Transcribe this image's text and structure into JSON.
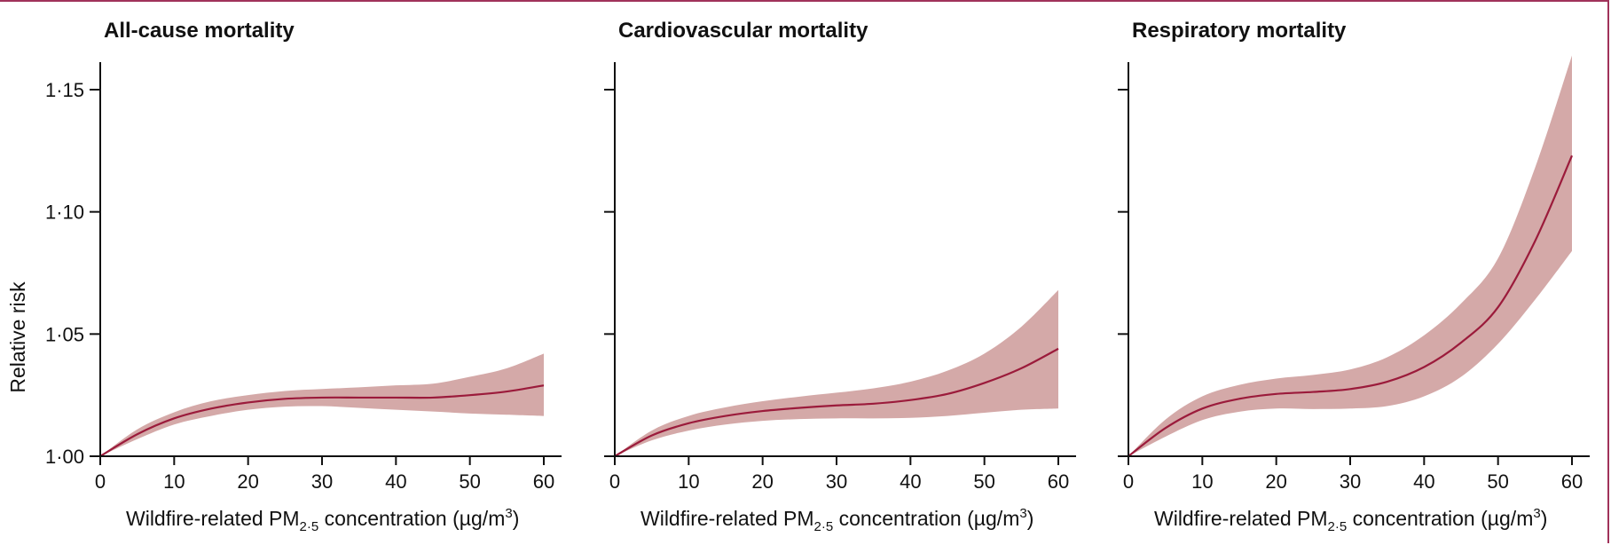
{
  "chart_data": [
    {
      "type": "line",
      "title": "All-cause mortality",
      "xlabel": "Wildfire-related PM",
      "xlabel_sub": "2·5",
      "xlabel_suffix": "concentration (µg/m",
      "xlabel_sup": "3",
      "xlabel_end": ")",
      "ylabel": "Relative risk",
      "xlim": [
        0,
        60
      ],
      "ylim": [
        1.0,
        1.16
      ],
      "x_ticks": [
        0,
        10,
        20,
        30,
        40,
        50,
        60
      ],
      "x_tick_labels": [
        "0",
        "10",
        "20",
        "30",
        "40",
        "50",
        "60"
      ],
      "y_ticks": [
        1.0,
        1.05,
        1.1,
        1.15
      ],
      "y_tick_labels": [
        "1·00",
        "1·05",
        "1·10",
        "1·15"
      ],
      "x": [
        0,
        5,
        10,
        15,
        20,
        25,
        30,
        35,
        40,
        45,
        50,
        55,
        60
      ],
      "series": [
        {
          "values": [
            1.0,
            1.009,
            1.0155,
            1.0195,
            1.022,
            1.0235,
            1.024,
            1.024,
            1.024,
            1.024,
            1.025,
            1.0265,
            1.029
          ]
        }
      ],
      "ci_lower": [
        1.0,
        1.007,
        1.013,
        1.0165,
        1.019,
        1.0203,
        1.0205,
        1.0198,
        1.019,
        1.0183,
        1.0175,
        1.017,
        1.0165
      ],
      "ci_upper": [
        1.0,
        1.011,
        1.018,
        1.0225,
        1.025,
        1.0267,
        1.0275,
        1.0282,
        1.029,
        1.0297,
        1.0325,
        1.036,
        1.042
      ]
    },
    {
      "type": "line",
      "title": "Cardiovascular mortality",
      "xlabel": "Wildfire-related PM",
      "xlabel_sub": "2·5",
      "xlabel_suffix": "concentration (µg/m",
      "xlabel_sup": "3",
      "xlabel_end": ")",
      "xlim": [
        0,
        60
      ],
      "ylim": [
        1.0,
        1.16
      ],
      "x_ticks": [
        0,
        10,
        20,
        30,
        40,
        50,
        60
      ],
      "x_tick_labels": [
        "0",
        "10",
        "20",
        "30",
        "40",
        "50",
        "60"
      ],
      "y_ticks": [
        1.0,
        1.05,
        1.1,
        1.15
      ],
      "x": [
        0,
        5,
        10,
        15,
        20,
        25,
        30,
        35,
        40,
        45,
        50,
        55,
        60
      ],
      "series": [
        {
          "values": [
            1.0,
            1.0085,
            1.0135,
            1.0165,
            1.0185,
            1.0198,
            1.0208,
            1.0215,
            1.023,
            1.0255,
            1.03,
            1.036,
            1.044
          ]
        }
      ],
      "ci_lower": [
        1.0,
        1.0065,
        1.0105,
        1.013,
        1.0145,
        1.0152,
        1.0155,
        1.0155,
        1.0157,
        1.0165,
        1.0178,
        1.019,
        1.0195
      ],
      "ci_upper": [
        1.0,
        1.0105,
        1.0165,
        1.02,
        1.0225,
        1.0244,
        1.026,
        1.0278,
        1.0305,
        1.035,
        1.042,
        1.053,
        1.068
      ]
    },
    {
      "type": "line",
      "title": "Respiratory mortality",
      "xlabel": "Wildfire-related PM",
      "xlabel_sub": "2·5",
      "xlabel_suffix": "concentration (µg/m",
      "xlabel_sup": "3",
      "xlabel_end": ")",
      "xlim": [
        0,
        60
      ],
      "ylim": [
        1.0,
        1.16
      ],
      "x_ticks": [
        0,
        10,
        20,
        30,
        40,
        50,
        60
      ],
      "x_tick_labels": [
        "0",
        "10",
        "20",
        "30",
        "40",
        "50",
        "60"
      ],
      "y_ticks": [
        1.0,
        1.05,
        1.1,
        1.15
      ],
      "x": [
        0,
        5,
        10,
        15,
        20,
        25,
        30,
        35,
        40,
        45,
        50,
        55,
        60
      ],
      "series": [
        {
          "values": [
            1.0,
            1.0115,
            1.0195,
            1.0235,
            1.0255,
            1.0263,
            1.0275,
            1.0305,
            1.0365,
            1.0465,
            1.061,
            1.088,
            1.123
          ]
        }
      ],
      "ci_lower": [
        1.0,
        1.008,
        1.0148,
        1.0182,
        1.0195,
        1.0193,
        1.0195,
        1.0205,
        1.0245,
        1.0325,
        1.046,
        1.064,
        1.084
      ],
      "ci_upper": [
        1.0,
        1.015,
        1.0245,
        1.0292,
        1.0318,
        1.0333,
        1.0355,
        1.0405,
        1.0495,
        1.0625,
        1.081,
        1.118,
        1.164
      ]
    }
  ]
}
